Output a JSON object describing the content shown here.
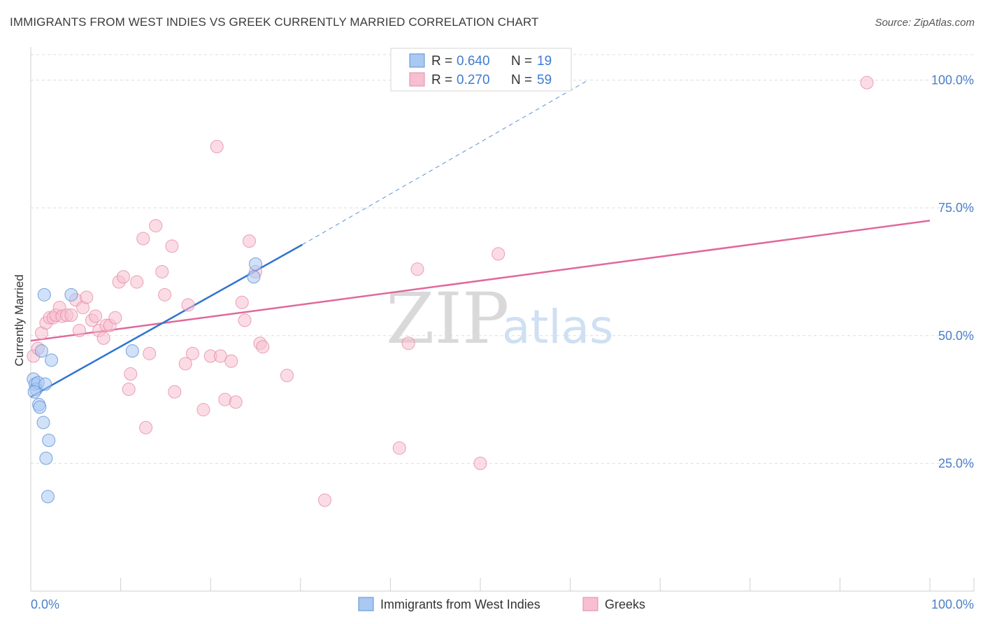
{
  "title": "IMMIGRANTS FROM WEST INDIES VS GREEK CURRENTLY MARRIED CORRELATION CHART",
  "source": "Source: ZipAtlas.com",
  "watermark": {
    "zip": "ZIP",
    "atlas": "atlas"
  },
  "colors": {
    "blue_fill": "#a9c8f2",
    "blue_stroke": "#5b8fd6",
    "blue_line": "#2f74cf",
    "pink_fill": "#f7bfd0",
    "pink_stroke": "#e58aa9",
    "pink_line": "#e1689a",
    "axis_label": "#4a7fc9",
    "grid": "#dddddd"
  },
  "legend": {
    "rows": [
      {
        "r_label": "R = ",
        "r_value": "0.640",
        "n_label": "N = ",
        "n_value": "19"
      },
      {
        "r_label": "R = ",
        "r_value": "0.270",
        "n_label": "N = ",
        "n_value": "59"
      }
    ]
  },
  "chart_data": {
    "type": "scatter",
    "title": "IMMIGRANTS FROM WEST INDIES VS GREEK CURRENTLY MARRIED CORRELATION CHART",
    "xlabel": "",
    "ylabel": "Currently Married",
    "xlim": [
      0,
      100
    ],
    "ylim": [
      0,
      105
    ],
    "x_tick_labels": [
      "0.0%",
      "100.0%"
    ],
    "y_ticks": [
      25,
      50,
      75,
      100
    ],
    "y_tick_labels": [
      "25.0%",
      "50.0%",
      "75.0%",
      "100.0%"
    ],
    "grid": true,
    "series": [
      {
        "name": "Immigrants from West Indies",
        "color": "blue",
        "R": 0.64,
        "N": 19,
        "points": [
          [
            0.3,
            41.5
          ],
          [
            0.5,
            40.5
          ],
          [
            0.6,
            39.5
          ],
          [
            0.8,
            40.8
          ],
          [
            0.9,
            36.5
          ],
          [
            1.0,
            36.0
          ],
          [
            1.2,
            47.0
          ],
          [
            1.4,
            33.0
          ],
          [
            1.5,
            58.0
          ],
          [
            1.6,
            40.5
          ],
          [
            1.7,
            26.0
          ],
          [
            1.9,
            18.5
          ],
          [
            2.0,
            29.5
          ],
          [
            2.3,
            45.2
          ],
          [
            4.5,
            58.0
          ],
          [
            11.3,
            47.0
          ],
          [
            24.8,
            61.5
          ],
          [
            25.0,
            64.0
          ],
          [
            0.4,
            39.0
          ]
        ],
        "trend": {
          "x0": 0,
          "y0": 38.0,
          "x1": 30.2,
          "y1": 67.8,
          "dash_x1": 62.0,
          "dash_y1": 100.0
        }
      },
      {
        "name": "Greeks",
        "color": "pink",
        "R": 0.27,
        "N": 59,
        "points": [
          [
            0.3,
            46.0
          ],
          [
            0.8,
            47.5
          ],
          [
            1.2,
            50.5
          ],
          [
            1.7,
            52.5
          ],
          [
            2.1,
            53.5
          ],
          [
            2.5,
            53.5
          ],
          [
            2.8,
            54.0
          ],
          [
            3.2,
            55.5
          ],
          [
            3.5,
            53.8
          ],
          [
            4.0,
            54.0
          ],
          [
            4.5,
            54.0
          ],
          [
            5.0,
            57.0
          ],
          [
            5.4,
            51.0
          ],
          [
            5.8,
            55.5
          ],
          [
            6.2,
            57.5
          ],
          [
            6.8,
            53.0
          ],
          [
            7.2,
            53.8
          ],
          [
            7.6,
            51.0
          ],
          [
            8.1,
            49.5
          ],
          [
            8.4,
            52.0
          ],
          [
            8.8,
            52.0
          ],
          [
            9.4,
            53.5
          ],
          [
            9.8,
            60.5
          ],
          [
            10.3,
            61.5
          ],
          [
            10.9,
            39.5
          ],
          [
            11.1,
            42.5
          ],
          [
            11.8,
            60.5
          ],
          [
            12.5,
            69.0
          ],
          [
            12.8,
            32.0
          ],
          [
            13.2,
            46.5
          ],
          [
            13.9,
            71.5
          ],
          [
            14.6,
            62.5
          ],
          [
            14.9,
            58.0
          ],
          [
            15.7,
            67.5
          ],
          [
            16.0,
            39.0
          ],
          [
            17.2,
            44.5
          ],
          [
            17.5,
            56.0
          ],
          [
            18.0,
            46.5
          ],
          [
            19.2,
            35.5
          ],
          [
            20.0,
            46.0
          ],
          [
            20.7,
            87.0
          ],
          [
            21.1,
            46.0
          ],
          [
            21.6,
            37.5
          ],
          [
            22.3,
            45.0
          ],
          [
            22.8,
            37.0
          ],
          [
            23.5,
            56.5
          ],
          [
            23.8,
            53.0
          ],
          [
            24.3,
            68.5
          ],
          [
            25.0,
            62.5
          ],
          [
            25.5,
            48.5
          ],
          [
            25.8,
            47.8
          ],
          [
            28.5,
            42.2
          ],
          [
            32.7,
            17.8
          ],
          [
            41.0,
            28.0
          ],
          [
            42.0,
            48.5
          ],
          [
            43.0,
            63.0
          ],
          [
            50.0,
            25.0
          ],
          [
            52.0,
            66.0
          ],
          [
            93.0,
            99.5
          ]
        ],
        "trend": {
          "x0": 0,
          "y0": 49.0,
          "x1": 100,
          "y1": 72.5
        }
      }
    ],
    "legend_position": "top-center",
    "bottom_legend": [
      "Immigrants from West Indies",
      "Greeks"
    ]
  }
}
